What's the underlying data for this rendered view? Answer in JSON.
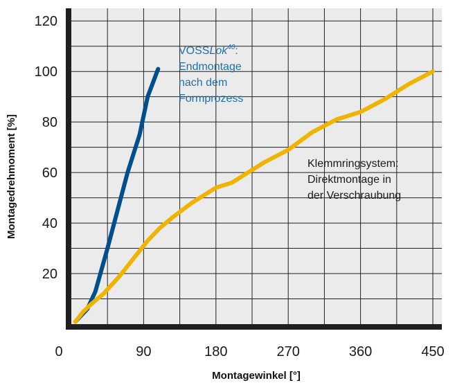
{
  "chart_data": {
    "type": "line",
    "title": "",
    "xlabel": "Montagewinkel [°]",
    "ylabel": "Montagedrehmoment [%]",
    "xlim": [
      0,
      450
    ],
    "ylim": [
      0,
      125
    ],
    "x_ticks": [
      0,
      90,
      180,
      270,
      360,
      450
    ],
    "y_ticks": [
      20,
      40,
      60,
      80,
      100,
      120
    ],
    "grid": true,
    "colors": {
      "plot_background": "#ebebeb",
      "axis": "#1f1f1f",
      "grid": "#1f1f1f",
      "annotation_blue": "#1f6fa8"
    },
    "series": [
      {
        "color": "#004f8c",
        "points": [
          [
            5,
            1
          ],
          [
            20,
            6
          ],
          [
            30,
            13
          ],
          [
            45,
            30
          ],
          [
            60,
            48
          ],
          [
            70,
            60
          ],
          [
            85,
            75
          ],
          [
            95,
            90
          ],
          [
            108,
            101
          ]
        ]
      },
      {
        "color": "#f0b400",
        "points": [
          [
            5,
            1
          ],
          [
            15,
            5
          ],
          [
            25,
            8
          ],
          [
            40,
            12
          ],
          [
            60,
            19
          ],
          [
            75,
            25
          ],
          [
            95,
            33
          ],
          [
            110,
            38
          ],
          [
            125,
            42
          ],
          [
            150,
            48
          ],
          [
            180,
            54
          ],
          [
            200,
            56
          ],
          [
            220,
            60
          ],
          [
            240,
            64
          ],
          [
            270,
            69
          ],
          [
            300,
            76
          ],
          [
            330,
            81
          ],
          [
            360,
            84
          ],
          [
            390,
            89
          ],
          [
            420,
            95
          ],
          [
            450,
            100
          ]
        ]
      }
    ],
    "annotations": [
      {
        "name": "voss-annotation",
        "lines": [
          {
            "prefix": "VOSS",
            "italic": "Lok",
            "sup": "40",
            "suffix": ":"
          },
          "Endmontage",
          "nach dem",
          "Formprozess"
        ]
      },
      {
        "name": "klemmring-annotation",
        "lines": [
          "Klemmringsystem:",
          "Direktmontage in",
          "der Verschraubung"
        ]
      }
    ]
  }
}
